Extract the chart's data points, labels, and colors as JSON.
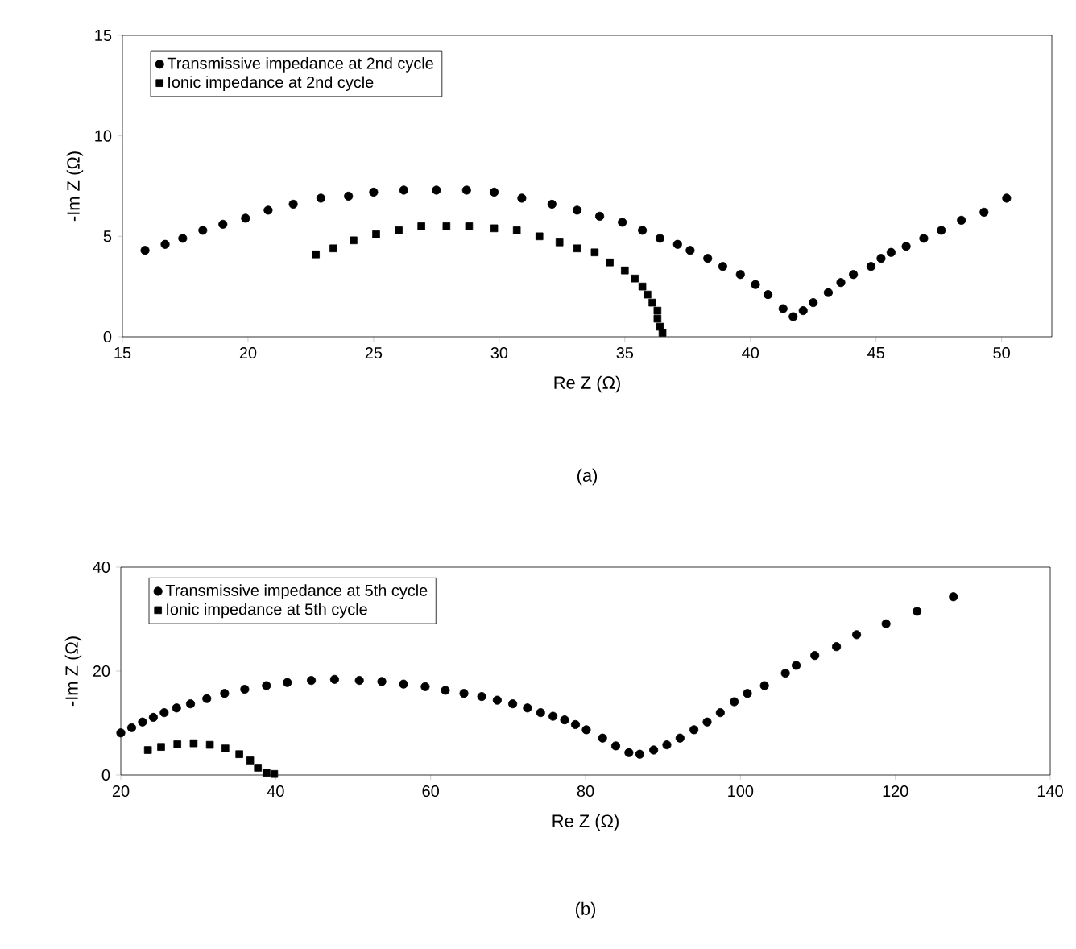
{
  "chart_data": [
    {
      "type": "scatter",
      "xlabel": "Re Z (Ω)",
      "ylabel": "-Im Z (Ω)",
      "xlim": [
        15,
        52
      ],
      "ylim": [
        0,
        15
      ],
      "xticks": [
        15,
        20,
        25,
        30,
        35,
        40,
        45,
        50
      ],
      "yticks": [
        0,
        5,
        10,
        15
      ],
      "legend": "top left",
      "grid": false,
      "annotations": [
        "(a)"
      ],
      "series": [
        {
          "name": "Transmissive impedance at 2nd cycle",
          "color": "#000000",
          "marker": "circle",
          "x": [
            15.9,
            16.7,
            17.4,
            18.2,
            19.0,
            19.9,
            20.8,
            21.8,
            22.9,
            24.0,
            25.0,
            26.2,
            27.5,
            28.7,
            29.8,
            30.9,
            32.1,
            33.1,
            34.0,
            34.9,
            35.7,
            36.4,
            37.1,
            37.6,
            38.3,
            38.9,
            39.6,
            40.2,
            40.7,
            41.3,
            41.7,
            42.1,
            42.5,
            43.1,
            43.6,
            44.1,
            44.8,
            45.2,
            45.6,
            46.2,
            46.9,
            47.6,
            48.4,
            49.3,
            50.2
          ],
          "values": [
            4.3,
            4.6,
            4.9,
            5.3,
            5.6,
            5.9,
            6.3,
            6.6,
            6.9,
            7.0,
            7.2,
            7.3,
            7.3,
            7.3,
            7.2,
            6.9,
            6.6,
            6.3,
            6.0,
            5.7,
            5.3,
            4.9,
            4.6,
            4.3,
            3.9,
            3.5,
            3.1,
            2.6,
            2.1,
            1.4,
            1.0,
            1.3,
            1.7,
            2.2,
            2.7,
            3.1,
            3.5,
            3.9,
            4.2,
            4.5,
            4.9,
            5.3,
            5.8,
            6.2,
            6.9
          ]
        },
        {
          "name": "Ionic impedance at 2nd cycle",
          "color": "#000000",
          "marker": "square",
          "x": [
            22.7,
            23.4,
            24.2,
            25.1,
            26.0,
            26.9,
            27.9,
            28.8,
            29.8,
            30.7,
            31.6,
            32.4,
            33.1,
            33.8,
            34.4,
            35.0,
            35.4,
            35.7,
            35.9,
            36.1,
            36.3,
            36.3,
            36.4,
            36.5
          ],
          "values": [
            4.1,
            4.4,
            4.8,
            5.1,
            5.3,
            5.5,
            5.5,
            5.5,
            5.4,
            5.3,
            5.0,
            4.7,
            4.4,
            4.2,
            3.7,
            3.3,
            2.9,
            2.5,
            2.1,
            1.7,
            1.3,
            0.9,
            0.5,
            0.2
          ]
        }
      ]
    },
    {
      "type": "scatter",
      "xlabel": "Re Z (Ω)",
      "ylabel": "-Im Z (Ω)",
      "xlim": [
        20,
        140
      ],
      "ylim": [
        0,
        40
      ],
      "xticks": [
        20,
        40,
        60,
        80,
        100,
        120,
        140
      ],
      "yticks": [
        0,
        20,
        40
      ],
      "legend": "top left",
      "grid": false,
      "annotations": [
        "(b)"
      ],
      "series": [
        {
          "name": "Transmissive impedance at 5th cycle",
          "color": "#000000",
          "marker": "circle",
          "x": [
            20.0,
            21.4,
            22.8,
            24.2,
            25.6,
            27.2,
            29.0,
            31.1,
            33.4,
            36.0,
            38.8,
            41.5,
            44.6,
            47.6,
            50.8,
            53.7,
            56.5,
            59.3,
            61.9,
            64.3,
            66.6,
            68.6,
            70.6,
            72.5,
            74.2,
            75.8,
            77.3,
            78.7,
            80.1,
            82.2,
            83.9,
            85.6,
            87.0,
            88.8,
            90.5,
            92.2,
            94.0,
            95.7,
            97.4,
            99.2,
            100.9,
            103.1,
            105.8,
            107.2,
            109.6,
            112.4,
            115.0,
            118.8,
            122.8,
            127.5
          ],
          "values": [
            8.1,
            9.1,
            10.2,
            11.1,
            12.0,
            12.9,
            13.7,
            14.7,
            15.7,
            16.5,
            17.2,
            17.8,
            18.2,
            18.4,
            18.2,
            18.0,
            17.5,
            17.0,
            16.3,
            15.7,
            15.1,
            14.4,
            13.7,
            12.9,
            12.0,
            11.3,
            10.6,
            9.7,
            8.7,
            7.1,
            5.6,
            4.3,
            4.0,
            4.8,
            5.8,
            7.1,
            8.7,
            10.2,
            12.0,
            14.1,
            15.7,
            17.2,
            19.6,
            21.1,
            23.0,
            24.7,
            27.0,
            29.1,
            31.5,
            34.3
          ]
        },
        {
          "name": "Ionic impedance at 5th cycle",
          "color": "#000000",
          "marker": "square",
          "x": [
            23.5,
            25.2,
            27.3,
            29.4,
            31.5,
            33.5,
            35.3,
            36.7,
            37.7,
            38.8,
            39.8
          ],
          "values": [
            4.8,
            5.4,
            5.9,
            6.1,
            5.8,
            5.1,
            4.0,
            2.8,
            1.4,
            0.4,
            0.2
          ]
        }
      ]
    }
  ]
}
